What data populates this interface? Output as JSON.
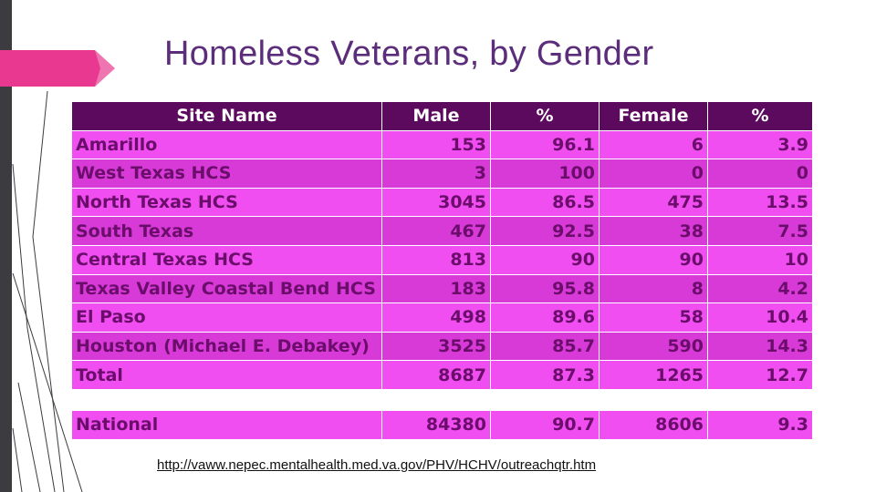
{
  "slide": {
    "title": "Homeless Veterans, by Gender",
    "source_url": "http://vaww.nepec.mentalhealth.med.va.gov/PHV/HCHV/outreachqtr.htm"
  },
  "colors": {
    "header_bg": "#5c0a5e",
    "row_light": "#f04ef0",
    "row_dark": "#d83ad8",
    "text": "#6b0d6b",
    "title": "#5b2d7a",
    "accent_arrow": "#e8388f"
  },
  "table": {
    "headers": [
      "Site Name",
      "Male",
      "%",
      "Female",
      "%"
    ],
    "rows": [
      [
        "Amarillo",
        "153",
        "96.1",
        "6",
        "3.9"
      ],
      [
        "West Texas HCS",
        "3",
        "100",
        "0",
        "0"
      ],
      [
        "North Texas HCS",
        "3045",
        "86.5",
        "475",
        "13.5"
      ],
      [
        "South Texas",
        "467",
        "92.5",
        "38",
        "7.5"
      ],
      [
        "Central Texas HCS",
        "813",
        "90",
        "90",
        "10"
      ],
      [
        "Texas Valley Coastal Bend HCS",
        "183",
        "95.8",
        "8",
        "4.2"
      ],
      [
        "El Paso",
        "498",
        "89.6",
        "58",
        "10.4"
      ],
      [
        "Houston (Michael E. Debakey)",
        "3525",
        "85.7",
        "590",
        "14.3"
      ],
      [
        "Total",
        "8687",
        "87.3",
        "1265",
        "12.7"
      ]
    ],
    "national": [
      "National",
      "84380",
      "90.7",
      "8606",
      "9.3"
    ]
  }
}
